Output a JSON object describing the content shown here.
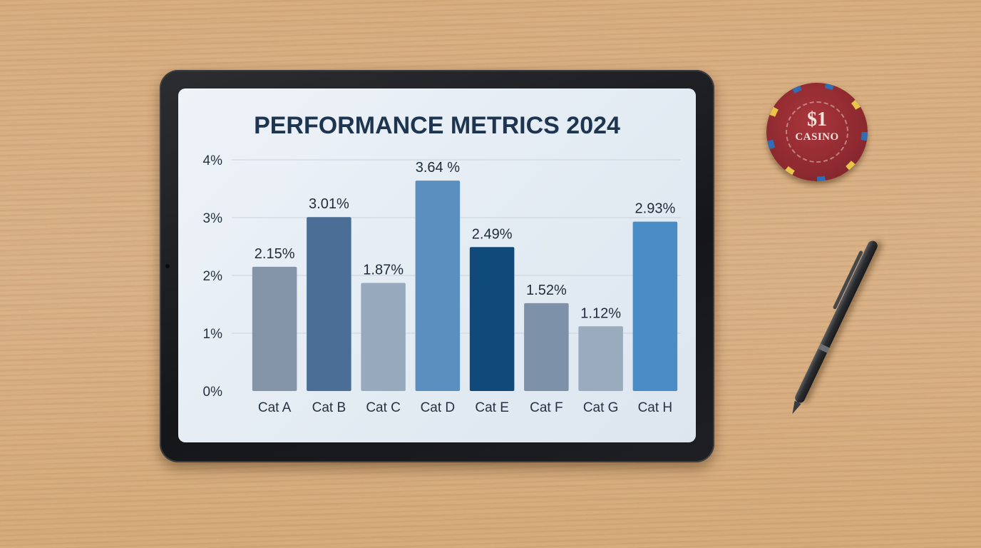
{
  "chart_data": {
    "type": "bar",
    "title": "PERFORMANCE METRICS 2024",
    "xlabel": "",
    "ylabel": "",
    "categories": [
      "Cat A",
      "Cat B",
      "Cat C",
      "Cat D",
      "Cat E",
      "Cat F",
      "Cat G",
      "Cat H"
    ],
    "values": [
      2.15,
      3.01,
      1.87,
      3.64,
      2.49,
      1.52,
      1.12,
      2.93
    ],
    "data_labels": [
      "2.15%",
      "3.01%",
      "1.87%",
      "3.64 %",
      "2.49%",
      "1.52%",
      "1.12%",
      "2.93%"
    ],
    "y_ticks": [
      "0%",
      "1%",
      "2%",
      "3%",
      "4%"
    ],
    "ylim": [
      0,
      4
    ],
    "grid": true,
    "legend": "none",
    "bar_colors": [
      "#8595a8",
      "#4a6e95",
      "#97aabd",
      "#5a8fc0",
      "#0f4a7a",
      "#7d91a8",
      "#9aabbd",
      "#4a8cc6"
    ]
  },
  "chip": {
    "value": "$1",
    "word": "CASINO"
  }
}
